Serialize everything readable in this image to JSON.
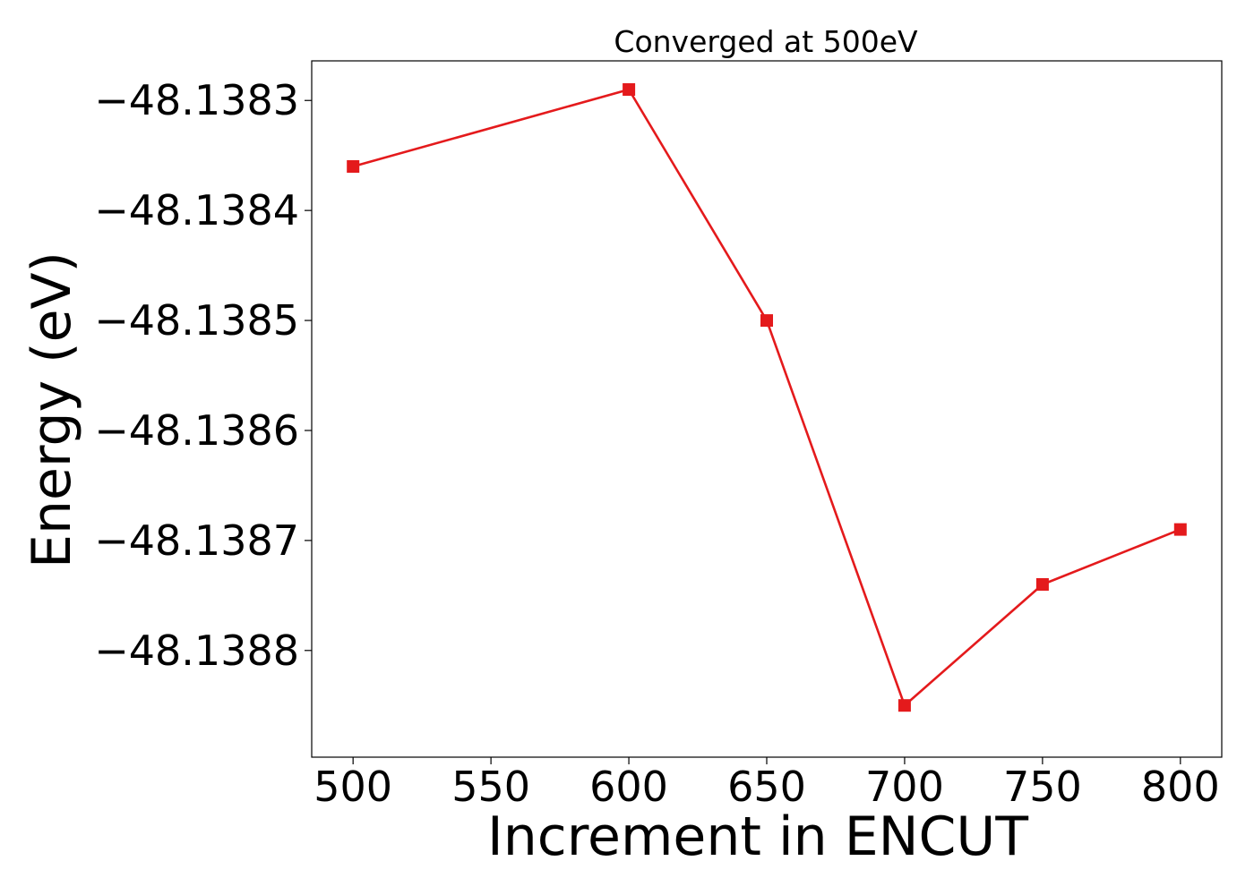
{
  "chart_data": {
    "type": "line",
    "title": "Converged at 500eV",
    "xlabel": "Increment in ENCUT",
    "ylabel": "Energy (eV)",
    "x": [
      500,
      600,
      650,
      700,
      750,
      800
    ],
    "series": [
      {
        "values": [
          -48.13836,
          -48.13829,
          -48.1385,
          -48.13885,
          -48.13874,
          -48.13869
        ],
        "color": "#e41a1c",
        "marker": "square"
      }
    ],
    "xticks": [
      500,
      550,
      600,
      650,
      700,
      750,
      800
    ],
    "xtick_labels": [
      "500",
      "550",
      "600",
      "650",
      "700",
      "750",
      "800"
    ],
    "yticks": [
      -48.1383,
      -48.1384,
      -48.1385,
      -48.1386,
      -48.1387,
      -48.1388
    ],
    "ytick_labels": [
      "−48.1383",
      "−48.1384",
      "−48.1385",
      "−48.1386",
      "−48.1387",
      "−48.1388"
    ],
    "xlim": [
      485,
      815
    ],
    "ylim": [
      -48.138897,
      -48.138264
    ],
    "grid": false,
    "legend": false
  }
}
